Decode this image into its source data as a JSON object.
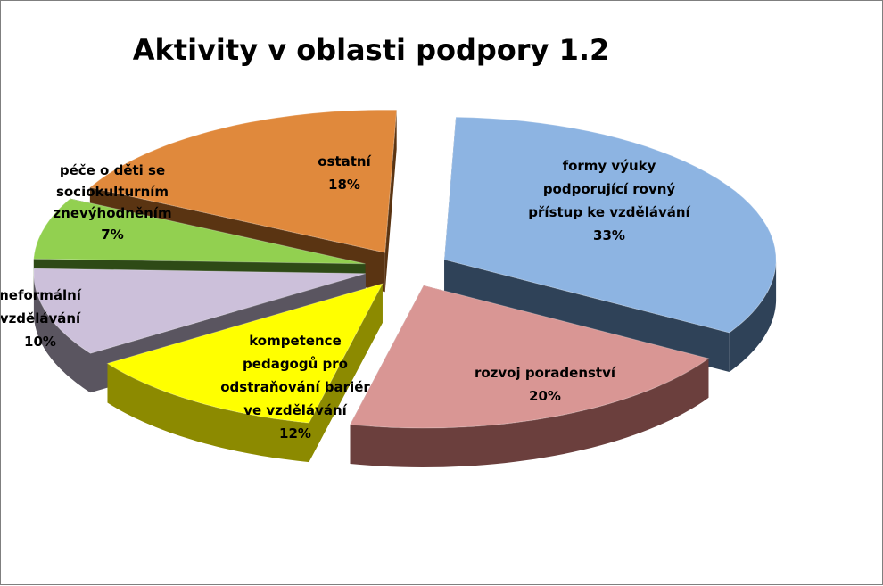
{
  "chart_data": {
    "type": "pie",
    "title": "Aktivity v oblasti podpory 1.2",
    "style": "3d-exploded",
    "slices": [
      {
        "label_lines": [
          "formy výuky",
          "podporující rovný",
          "přístup ke vzdělávání"
        ],
        "value": 33,
        "value_label": "33%",
        "color": "#8DB4E2",
        "side_color": "#2F4258"
      },
      {
        "label_lines": [
          "rozvoj poradenství"
        ],
        "value": 20,
        "value_label": "20%",
        "color": "#D99694",
        "side_color": "#6B3F3D"
      },
      {
        "label_lines": [
          "kompetence",
          "pedagogů pro",
          "odstraňování bariér",
          "ve vzdělávání"
        ],
        "value": 12,
        "value_label": "12%",
        "color": "#FFFF00",
        "side_color": "#8C8A00"
      },
      {
        "label_lines": [
          "neformální",
          "vzdělávání"
        ],
        "value": 10,
        "value_label": "10%",
        "color": "#CCC0DA",
        "side_color": "#5A5560"
      },
      {
        "label_lines": [
          "péče o děti se",
          "sociokulturním",
          "znevýhodněním"
        ],
        "value": 7,
        "value_label": "7%",
        "color": "#92D050",
        "side_color": "#2E4A16"
      },
      {
        "label_lines": [
          "ostatní"
        ],
        "value": 18,
        "value_label": "18%",
        "color": "#E0893C",
        "side_color": "#5A3412"
      }
    ]
  }
}
